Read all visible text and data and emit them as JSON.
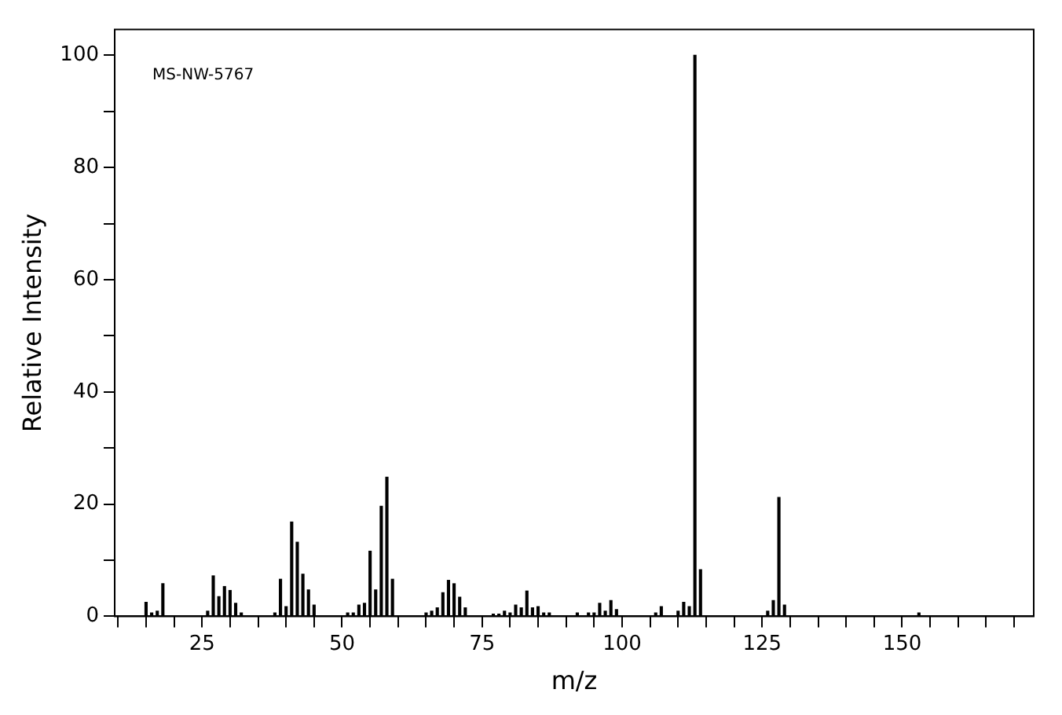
{
  "chart_data": {
    "type": "bar",
    "xlabel": "m/z",
    "ylabel": "Relative Intensity",
    "annotations": [
      "MS-NW-5767"
    ],
    "color": "#000000",
    "grid": false,
    "x": [
      15,
      16,
      17,
      18,
      26,
      27,
      28,
      29,
      30,
      31,
      32,
      38,
      39,
      40,
      41,
      42,
      43,
      44,
      45,
      51,
      52,
      53,
      54,
      55,
      56,
      57,
      58,
      59,
      65,
      66,
      67,
      68,
      69,
      70,
      71,
      72,
      77,
      78,
      79,
      80,
      81,
      82,
      83,
      84,
      85,
      86,
      87,
      92,
      94,
      95,
      96,
      97,
      98,
      99,
      106,
      107,
      110,
      111,
      112,
      113,
      114,
      126,
      127,
      128,
      129,
      153
    ],
    "values": [
      2.5,
      0.6,
      0.9,
      5.8,
      0.9,
      7.2,
      3.5,
      5.3,
      4.6,
      2.3,
      0.6,
      0.6,
      6.6,
      1.7,
      16.8,
      13.2,
      7.5,
      4.7,
      2.0,
      0.6,
      0.6,
      2.0,
      2.3,
      11.6,
      4.7,
      19.6,
      24.8,
      6.6,
      0.6,
      0.9,
      1.5,
      4.2,
      6.4,
      5.8,
      3.4,
      1.5,
      0.4,
      0.4,
      0.9,
      0.6,
      2.0,
      1.5,
      4.5,
      1.5,
      1.7,
      0.6,
      0.6,
      0.6,
      0.6,
      0.6,
      2.3,
      0.9,
      2.8,
      1.2,
      0.6,
      1.7,
      0.9,
      2.5,
      1.7,
      100,
      8.3,
      0.9,
      2.8,
      21.2,
      2.0,
      0.6
    ],
    "xlim": [
      9.4,
      173.5
    ],
    "xticks": [
      {
        "value": 10,
        "label": null
      },
      {
        "value": 15,
        "label": null
      },
      {
        "value": 20,
        "label": null
      },
      25,
      {
        "value": 30,
        "label": null
      },
      {
        "value": 35,
        "label": null
      },
      {
        "value": 40,
        "label": null
      },
      {
        "value": 45,
        "label": null
      },
      50,
      {
        "value": 55,
        "label": null
      },
      {
        "value": 60,
        "label": null
      },
      {
        "value": 65,
        "label": null
      },
      {
        "value": 70,
        "label": null
      },
      75,
      {
        "value": 80,
        "label": null
      },
      {
        "value": 85,
        "label": null
      },
      {
        "value": 90,
        "label": null
      },
      {
        "value": 95,
        "label": null
      },
      100,
      {
        "value": 105,
        "label": null
      },
      {
        "value": 110,
        "label": null
      },
      {
        "value": 115,
        "label": null
      },
      {
        "value": 120,
        "label": null
      },
      125,
      {
        "value": 130,
        "label": null
      },
      {
        "value": 135,
        "label": null
      },
      {
        "value": 140,
        "label": null
      },
      {
        "value": 145,
        "label": null
      },
      150,
      {
        "value": 155,
        "label": null
      },
      {
        "value": 160,
        "label": null
      },
      {
        "value": 165,
        "label": null
      },
      {
        "value": 170,
        "label": null
      }
    ],
    "ylim": [
      0,
      104.6
    ],
    "yticks": [
      0,
      {
        "value": 10,
        "label": null
      },
      20,
      {
        "value": 30,
        "label": null
      },
      40,
      {
        "value": 50,
        "label": null
      },
      60,
      {
        "value": 70,
        "label": null
      },
      80,
      {
        "value": 90,
        "label": null
      },
      100
    ]
  }
}
